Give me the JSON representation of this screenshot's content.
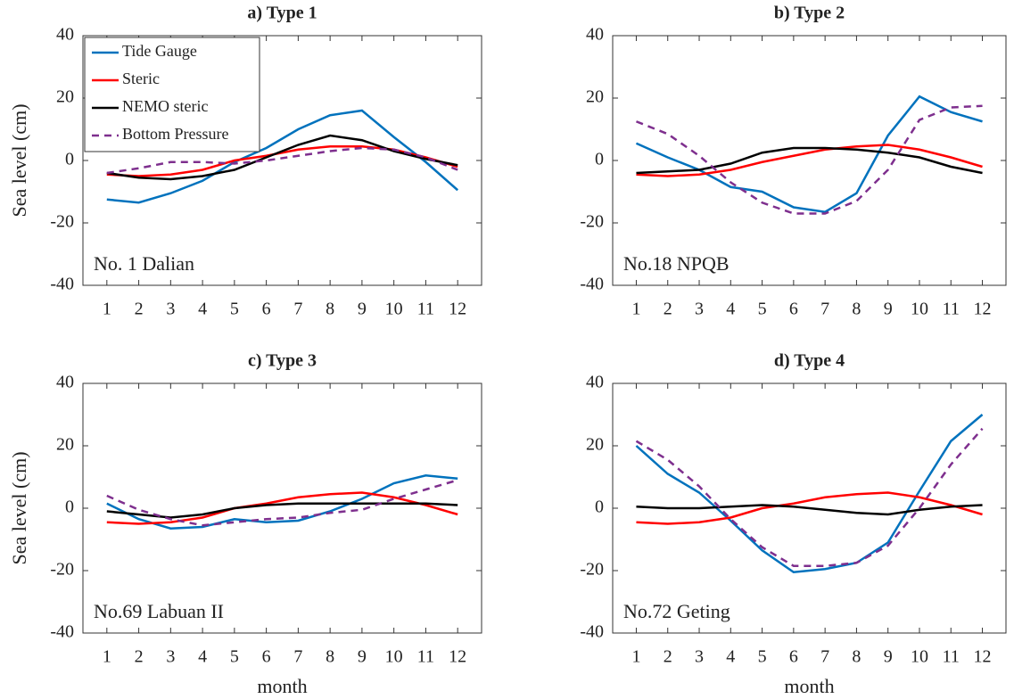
{
  "chart_data": [
    {
      "type": "line",
      "title": "a) Type 1",
      "ylabel": "Sea level (cm)",
      "annotation": "No. 1 Dalian",
      "x": [
        1,
        2,
        3,
        4,
        5,
        6,
        7,
        8,
        9,
        10,
        11,
        12
      ],
      "xlim": [
        0.25,
        12.75
      ],
      "xticks": [
        1,
        2,
        3,
        4,
        5,
        6,
        7,
        8,
        9,
        10,
        11,
        12
      ],
      "ylim": [
        -40,
        40
      ],
      "yticks": [
        -40,
        -20,
        0,
        20,
        40
      ],
      "legend": "upper left",
      "series": [
        {
          "name": "Tide Gauge",
          "color": "#0072bd",
          "linestyle": "solid",
          "values": [
            -12.5,
            -13.5,
            -10.5,
            -6.5,
            -0.5,
            4,
            10,
            14.5,
            16,
            7.5,
            -0.5,
            -9.5
          ]
        },
        {
          "name": "Steric",
          "color": "#ff0000",
          "linestyle": "solid",
          "values": [
            -4.5,
            -5,
            -4.5,
            -3,
            0,
            1.5,
            3.5,
            4.5,
            4.5,
            3.5,
            1,
            -2
          ]
        },
        {
          "name": "NEMO steric",
          "color": "#000000",
          "linestyle": "solid",
          "values": [
            -4,
            -5.5,
            -6,
            -5,
            -3,
            1,
            5,
            8,
            6.5,
            3,
            0.5,
            -1.5
          ]
        },
        {
          "name": "Bottom Pressure",
          "color": "#7e2f8e",
          "linestyle": "dashed",
          "values": [
            -4,
            -2.5,
            -0.5,
            -0.5,
            -1,
            0,
            1.5,
            3,
            4,
            3.5,
            1,
            -3
          ]
        }
      ]
    },
    {
      "type": "line",
      "title": "b) Type 2",
      "annotation": "No.18 NPQB",
      "x": [
        1,
        2,
        3,
        4,
        5,
        6,
        7,
        8,
        9,
        10,
        11,
        12
      ],
      "xlim": [
        0.25,
        12.75
      ],
      "xticks": [
        1,
        2,
        3,
        4,
        5,
        6,
        7,
        8,
        9,
        10,
        11,
        12
      ],
      "ylim": [
        -40,
        40
      ],
      "yticks": [
        -40,
        -20,
        0,
        20,
        40
      ],
      "series": [
        {
          "color": "#0072bd",
          "linestyle": "solid",
          "values": [
            5.5,
            1,
            -3,
            -8.5,
            -10,
            -15,
            -16.5,
            -10.5,
            8,
            20.5,
            15.5,
            12.5
          ]
        },
        {
          "color": "#ff0000",
          "linestyle": "solid",
          "values": [
            -4.5,
            -5,
            -4.5,
            -3,
            -0.5,
            1.5,
            3.5,
            4.5,
            5,
            3.5,
            1,
            -2
          ]
        },
        {
          "color": "#000000",
          "linestyle": "solid",
          "values": [
            -4,
            -3.5,
            -3,
            -1,
            2.5,
            4,
            4,
            3.5,
            2.5,
            1,
            -2,
            -4
          ]
        },
        {
          "color": "#7e2f8e",
          "linestyle": "dashed",
          "values": [
            12.5,
            8.5,
            1.5,
            -7,
            -13.5,
            -17,
            -17,
            -13,
            -3,
            13,
            17,
            17.5
          ]
        }
      ]
    },
    {
      "type": "line",
      "title": "c) Type 3",
      "ylabel": "Sea level (cm)",
      "xlabel": "month",
      "annotation": "No.69 Labuan II",
      "x": [
        1,
        2,
        3,
        4,
        5,
        6,
        7,
        8,
        9,
        10,
        11,
        12
      ],
      "xlim": [
        0.25,
        12.75
      ],
      "xticks": [
        1,
        2,
        3,
        4,
        5,
        6,
        7,
        8,
        9,
        10,
        11,
        12
      ],
      "ylim": [
        -40,
        40
      ],
      "yticks": [
        -40,
        -20,
        0,
        20,
        40
      ],
      "series": [
        {
          "color": "#0072bd",
          "linestyle": "solid",
          "values": [
            1.5,
            -3.5,
            -6.5,
            -6,
            -3.5,
            -4.5,
            -4,
            -1,
            3,
            8,
            10.5,
            9.5
          ]
        },
        {
          "color": "#ff0000",
          "linestyle": "solid",
          "values": [
            -4.5,
            -5,
            -4.5,
            -3,
            0,
            1.5,
            3.5,
            4.5,
            5,
            3.5,
            1,
            -2
          ]
        },
        {
          "color": "#000000",
          "linestyle": "solid",
          "values": [
            -1,
            -2,
            -3,
            -2,
            0,
            1,
            1.5,
            1.5,
            1.5,
            1.5,
            1.5,
            1
          ]
        },
        {
          "color": "#7e2f8e",
          "linestyle": "dashed",
          "values": [
            4,
            -0.5,
            -3.5,
            -5.5,
            -4.5,
            -3.5,
            -3,
            -1.5,
            -0.5,
            3,
            6,
            9
          ]
        }
      ]
    },
    {
      "type": "line",
      "title": "d) Type 4",
      "xlabel": "month",
      "annotation": "No.72 Geting",
      "x": [
        1,
        2,
        3,
        4,
        5,
        6,
        7,
        8,
        9,
        10,
        11,
        12
      ],
      "xlim": [
        0.25,
        12.75
      ],
      "xticks": [
        1,
        2,
        3,
        4,
        5,
        6,
        7,
        8,
        9,
        10,
        11,
        12
      ],
      "ylim": [
        -40,
        40
      ],
      "yticks": [
        -40,
        -20,
        0,
        20,
        40
      ],
      "series": [
        {
          "color": "#0072bd",
          "linestyle": "solid",
          "values": [
            20,
            11,
            5,
            -4,
            -13.5,
            -20.5,
            -19.5,
            -17.5,
            -11,
            5.5,
            21.5,
            30
          ]
        },
        {
          "color": "#ff0000",
          "linestyle": "solid",
          "values": [
            -4.5,
            -5,
            -4.5,
            -3,
            0,
            1.5,
            3.5,
            4.5,
            5,
            3.5,
            1,
            -2
          ]
        },
        {
          "color": "#000000",
          "linestyle": "solid",
          "values": [
            0.5,
            0,
            0,
            0.5,
            1,
            0.5,
            -0.5,
            -1.5,
            -2,
            -0.5,
            0.5,
            1
          ]
        },
        {
          "color": "#7e2f8e",
          "linestyle": "dashed",
          "values": [
            21.5,
            15.5,
            7,
            -3.5,
            -12.5,
            -18.5,
            -18.5,
            -17.5,
            -12,
            0,
            14,
            25.5
          ]
        }
      ]
    }
  ]
}
